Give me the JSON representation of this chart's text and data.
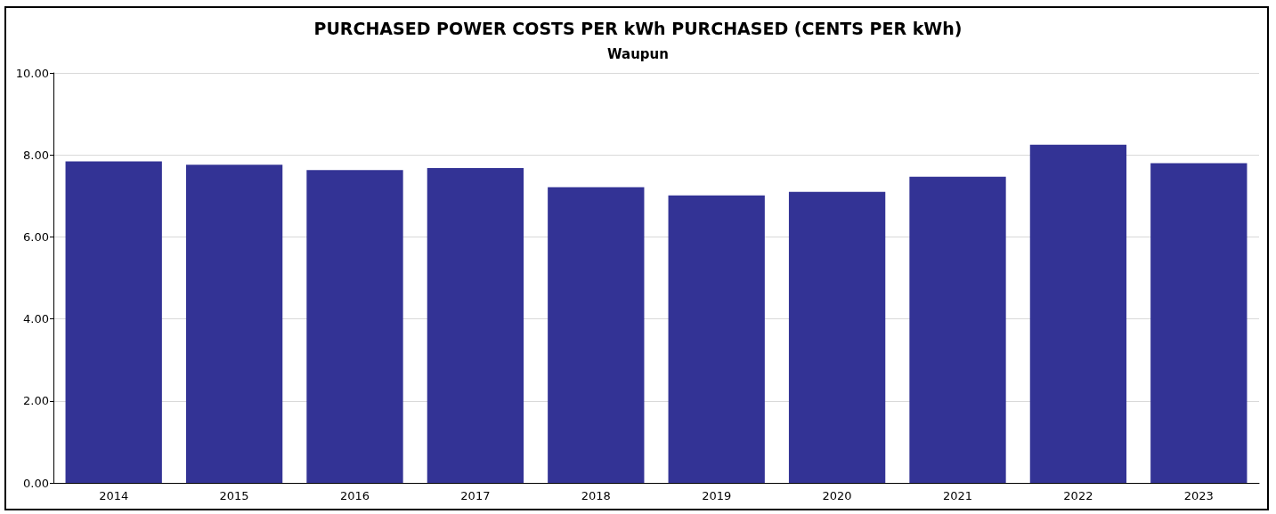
{
  "chart_data": {
    "type": "bar",
    "title": "PURCHASED POWER COSTS PER kWh PURCHASED (CENTS PER kWh)",
    "subtitle": "Waupun",
    "categories": [
      "2014",
      "2015",
      "2016",
      "2017",
      "2018",
      "2019",
      "2020",
      "2021",
      "2022",
      "2023"
    ],
    "values": [
      7.84,
      7.76,
      7.63,
      7.68,
      7.21,
      7.01,
      7.1,
      7.47,
      8.25,
      7.8
    ],
    "color": "#333395",
    "ylim": [
      0,
      10
    ],
    "yticks": [
      {
        "value": 0,
        "label": "0.00"
      },
      {
        "value": 2,
        "label": "2.00"
      },
      {
        "value": 4,
        "label": "4.00"
      },
      {
        "value": 6,
        "label": "6.00"
      },
      {
        "value": 8,
        "label": "8.00"
      },
      {
        "value": 10,
        "label": "10.00"
      }
    ],
    "grid": "y"
  }
}
